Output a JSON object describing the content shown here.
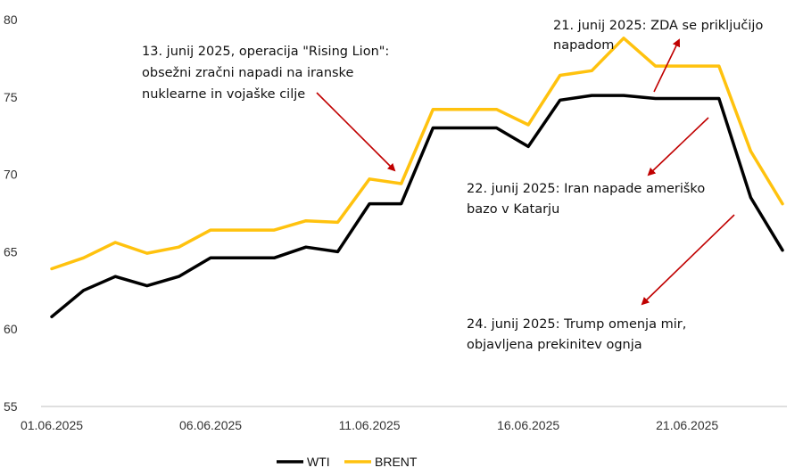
{
  "colors": {
    "wti": "#000000",
    "brent": "#ffc20e",
    "arrow": "#c00000",
    "axis": "#bfbfbf",
    "text": "#111111"
  },
  "chart_data": {
    "type": "line",
    "title": "",
    "xlabel": "",
    "ylabel": "",
    "ylim": [
      55,
      80
    ],
    "yticks": [
      "55",
      "60",
      "65",
      "70",
      "75",
      "80"
    ],
    "x": [
      "01.06.2025",
      "02.06.2025",
      "03.06.2025",
      "04.06.2025",
      "05.06.2025",
      "06.06.2025",
      "07.06.2025",
      "08.06.2025",
      "09.06.2025",
      "10.06.2025",
      "11.06.2025",
      "12.06.2025",
      "13.06.2025",
      "14.06.2025",
      "15.06.2025",
      "16.06.2025",
      "17.06.2025",
      "18.06.2025",
      "19.06.2025",
      "20.06.2025",
      "21.06.2025",
      "22.06.2025",
      "23.06.2025",
      "24.06.2025"
    ],
    "xticks": [
      "01.06.2025",
      "06.06.2025",
      "11.06.2025",
      "16.06.2025",
      "21.06.2025"
    ],
    "grid": false,
    "legend_position": "bottom",
    "series": [
      {
        "name": "WTI",
        "color_key": "wti",
        "values": [
          60.8,
          62.5,
          63.4,
          62.8,
          63.4,
          64.6,
          64.6,
          64.6,
          65.3,
          65.0,
          68.1,
          68.1,
          73.0,
          73.0,
          73.0,
          71.8,
          74.8,
          75.1,
          75.1,
          74.9,
          74.9,
          74.9,
          68.5,
          65.1
        ]
      },
      {
        "name": "BRENT",
        "color_key": "brent",
        "values": [
          63.9,
          64.6,
          65.6,
          64.9,
          65.3,
          66.4,
          66.4,
          66.4,
          67.0,
          66.9,
          69.7,
          69.4,
          74.2,
          74.2,
          74.2,
          73.2,
          76.4,
          76.7,
          78.8,
          77.0,
          77.0,
          77.0,
          71.5,
          68.1
        ]
      }
    ],
    "annotations": [
      {
        "lines": [
          "13. junij 2025, operacija \"Rising Lion\":",
          "obsežni zračni napadi na iranske",
          "nuklearne in vojaške cilje"
        ]
      },
      {
        "lines": [
          "21. junij 2025: ZDA se priključijo",
          "napadom"
        ]
      },
      {
        "lines": [
          "22. junij 2025: Iran napade ameriško",
          "bazo v Katarju"
        ]
      },
      {
        "lines": [
          "24. junij 2025: Trump omenja mir,",
          "objavljena prekinitev ognja"
        ]
      }
    ]
  }
}
